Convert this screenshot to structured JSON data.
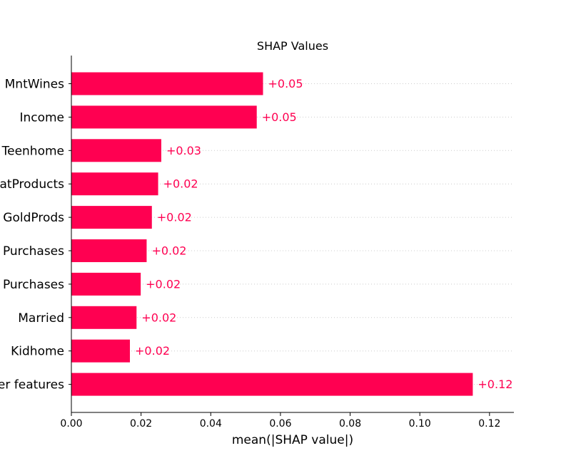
{
  "chart_data": {
    "type": "bar",
    "orientation": "horizontal",
    "title": "SHAP Values",
    "xlabel": "mean(|SHAP value|)",
    "ylabel": "",
    "categories": [
      "MntWines",
      "Income",
      "Teenhome",
      "atProducts",
      "GoldProds",
      "Purchases",
      "Purchases",
      "Married",
      "Kidhome",
      "er features"
    ],
    "values": [
      0.055,
      0.0532,
      0.0258,
      0.0249,
      0.0231,
      0.0216,
      0.0199,
      0.0187,
      0.0168,
      0.1152
    ],
    "value_labels": [
      "+0.05",
      "+0.05",
      "+0.03",
      "+0.02",
      "+0.02",
      "+0.02",
      "+0.02",
      "+0.02",
      "+0.02",
      "+0.12"
    ],
    "xlim": [
      0,
      0.127
    ],
    "xticks": [
      0.0,
      0.02,
      0.04,
      0.06,
      0.08,
      0.1,
      0.12
    ],
    "xtick_labels": [
      "0.00",
      "0.02",
      "0.04",
      "0.06",
      "0.08",
      "0.10",
      "0.12"
    ],
    "bar_color": "#ff0051",
    "label_color": "#ff0051",
    "grid": "dotted horizontal per bar"
  }
}
